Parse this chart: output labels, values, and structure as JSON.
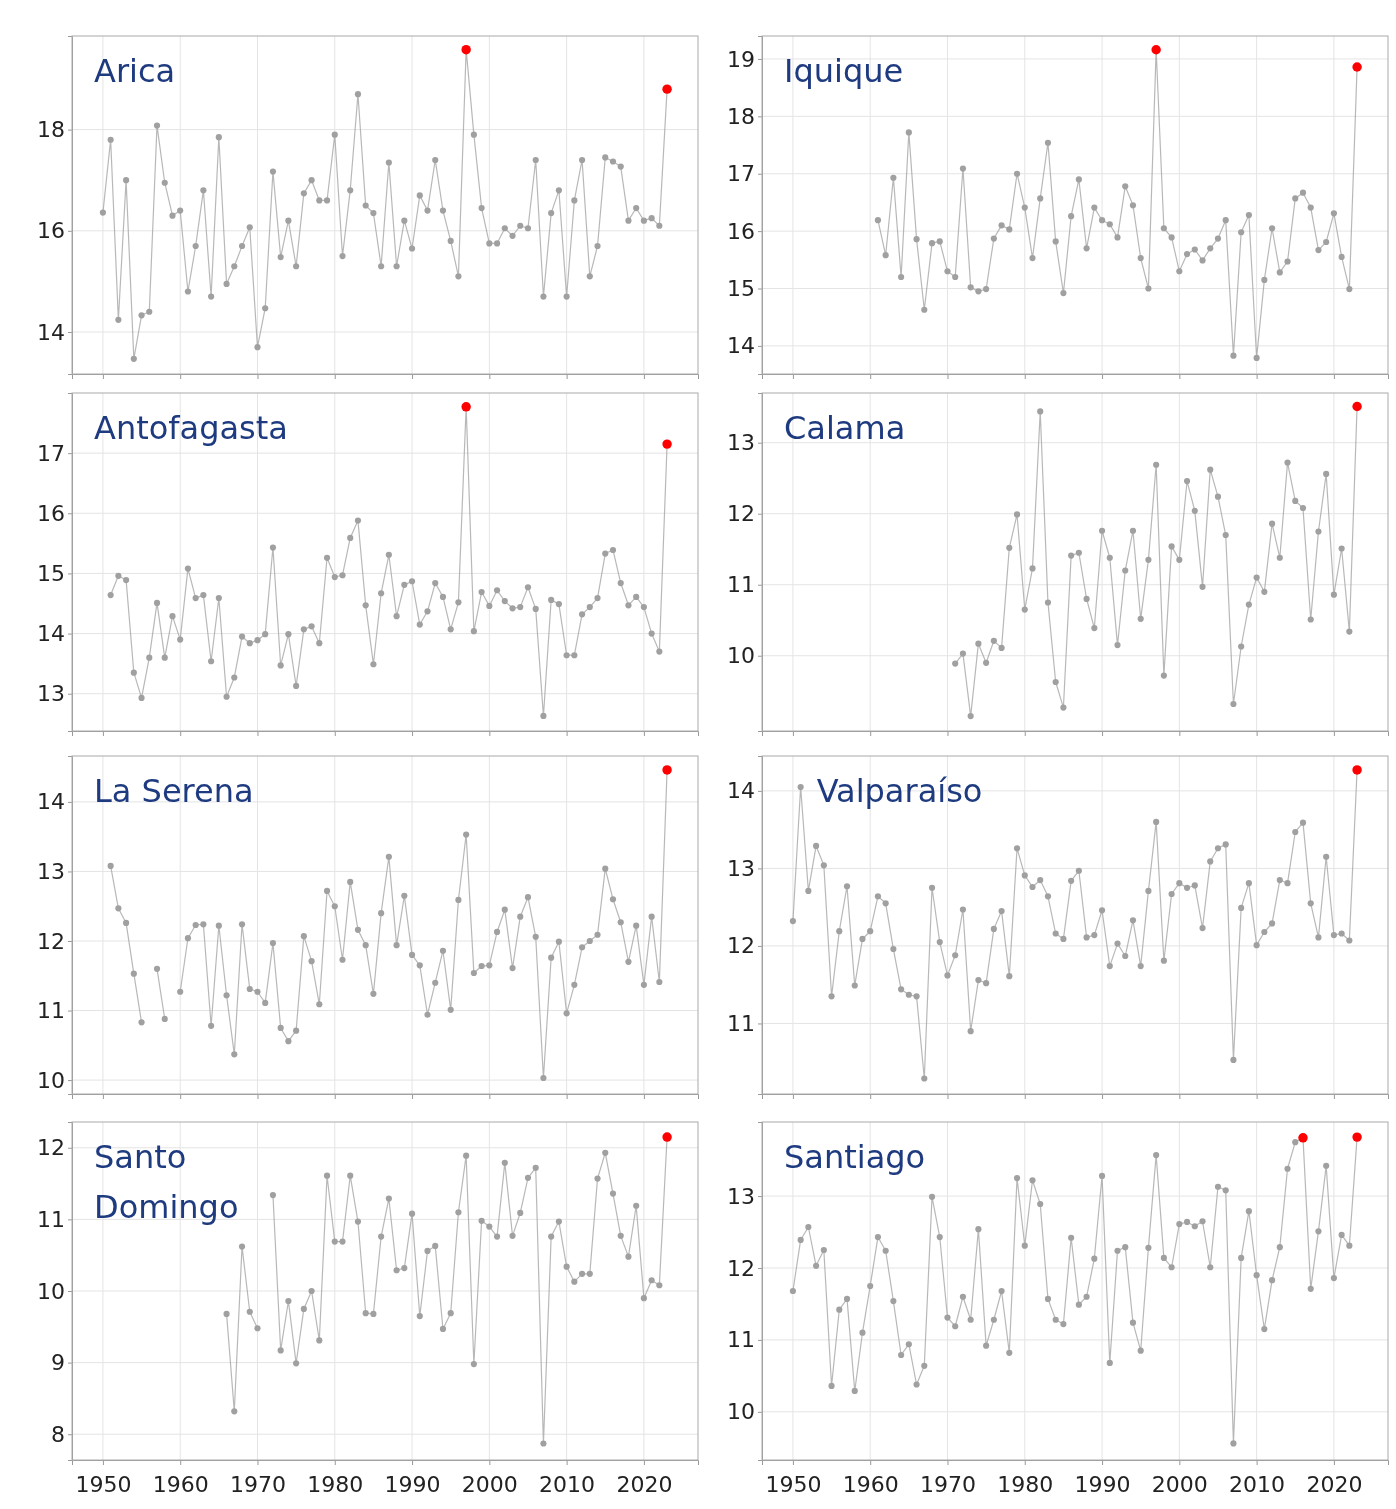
{
  "chart_data": [
    {
      "type": "line",
      "title": "Arica",
      "grid": true,
      "marker": "circle",
      "tick_labels": "y",
      "xlim": [
        1946,
        2027
      ],
      "xticks": [
        1950,
        1960,
        1970,
        1980,
        1990,
        2000,
        2010,
        2020
      ],
      "ylim": [
        13.17,
        19.85
      ],
      "yticks": [
        14,
        16,
        18
      ],
      "x": [
        1950,
        1951,
        1952,
        1953,
        1954,
        1955,
        1956,
        1957,
        1958,
        1959,
        1960,
        1961,
        1962,
        1963,
        1964,
        1965,
        1966,
        1967,
        1968,
        1969,
        1970,
        1971,
        1972,
        1973,
        1974,
        1975,
        1976,
        1977,
        1978,
        1979,
        1980,
        1981,
        1982,
        1983,
        1984,
        1985,
        1986,
        1987,
        1988,
        1989,
        1990,
        1991,
        1992,
        1993,
        1994,
        1995,
        1996,
        1997,
        1998,
        1999,
        2000,
        2001,
        2002,
        2003,
        2004,
        2005,
        2006,
        2007,
        2008,
        2009,
        2010,
        2011,
        2012,
        2013,
        2014,
        2015,
        2016,
        2017,
        2018,
        2019,
        2020,
        2021,
        2022,
        2023
      ],
      "series": [
        {
          "color": "#a0a0a0",
          "values": [
            16.36,
            17.8,
            14.24,
            17.0,
            13.47,
            14.33,
            14.4,
            18.08,
            16.95,
            16.3,
            16.4,
            14.8,
            15.7,
            16.8,
            14.7,
            17.85,
            14.95,
            15.3,
            15.7,
            16.07,
            13.7,
            14.47,
            17.17,
            15.48,
            16.2,
            15.3,
            16.74,
            17.0,
            16.6,
            16.6,
            17.9,
            15.5,
            16.8,
            18.7,
            16.5,
            16.35,
            15.3,
            17.35,
            15.3,
            16.2,
            15.65,
            16.7,
            16.4,
            17.4,
            16.4,
            15.8,
            15.1,
            19.58,
            17.9,
            16.45,
            15.75,
            15.75,
            16.05,
            15.9,
            16.1,
            16.05,
            17.4,
            14.7,
            16.35,
            16.8,
            14.7,
            16.6,
            17.4,
            15.1,
            15.7,
            17.45,
            17.37,
            17.27,
            16.2,
            16.45,
            16.2,
            16.25,
            16.1,
            18.8
          ],
          "colors": [
            "#a0a0a0",
            "#a0a0a0",
            "#a0a0a0",
            "#a0a0a0",
            "#a0a0a0",
            "#a0a0a0",
            "#a0a0a0",
            "#a0a0a0",
            "#a0a0a0",
            "#a0a0a0",
            "#a0a0a0",
            "#a0a0a0",
            "#a0a0a0",
            "#a0a0a0",
            "#a0a0a0",
            "#a0a0a0",
            "#a0a0a0",
            "#a0a0a0",
            "#a0a0a0",
            "#a0a0a0",
            "#a0a0a0",
            "#a0a0a0",
            "#a0a0a0",
            "#a0a0a0",
            "#a0a0a0",
            "#a0a0a0",
            "#a0a0a0",
            "#a0a0a0",
            "#a0a0a0",
            "#a0a0a0",
            "#a0a0a0",
            "#a0a0a0",
            "#a0a0a0",
            "#a0a0a0",
            "#a0a0a0",
            "#a0a0a0",
            "#a0a0a0",
            "#a0a0a0",
            "#a0a0a0",
            "#a0a0a0",
            "#a0a0a0",
            "#a0a0a0",
            "#a0a0a0",
            "#a0a0a0",
            "#a0a0a0",
            "#a0a0a0",
            "#a0a0a0",
            "#ff0000",
            "#a0a0a0",
            "#a0a0a0",
            "#a0a0a0",
            "#a0a0a0",
            "#a0a0a0",
            "#a0a0a0",
            "#a0a0a0",
            "#a0a0a0",
            "#a0a0a0",
            "#a0a0a0",
            "#a0a0a0",
            "#a0a0a0",
            "#a0a0a0",
            "#a0a0a0",
            "#a0a0a0",
            "#a0a0a0",
            "#a0a0a0",
            "#a0a0a0",
            "#a0a0a0",
            "#a0a0a0",
            "#a0a0a0",
            "#a0a0a0",
            "#a0a0a0",
            "#a0a0a0",
            "#a0a0a0",
            "#ff0000"
          ]
        }
      ]
    },
    {
      "type": "line",
      "title": "Iquique",
      "grid": true,
      "marker": "circle",
      "tick_labels": "y",
      "xlim": [
        1946,
        2027
      ],
      "xticks": [
        1950,
        1960,
        1970,
        1980,
        1990,
        2000,
        2010,
        2020
      ],
      "ylim": [
        13.51,
        19.4
      ],
      "yticks": [
        14,
        15,
        16,
        17,
        18,
        19
      ],
      "x": [
        1961,
        1962,
        1963,
        1964,
        1965,
        1966,
        1967,
        1968,
        1969,
        1970,
        1971,
        1972,
        1973,
        1974,
        1975,
        1976,
        1977,
        1978,
        1979,
        1980,
        1981,
        1982,
        1983,
        1984,
        1985,
        1986,
        1987,
        1988,
        1989,
        1990,
        1991,
        1992,
        1993,
        1994,
        1995,
        1996,
        1997,
        1998,
        1999,
        2000,
        2001,
        2002,
        2003,
        2004,
        2005,
        2006,
        2007,
        2008,
        2009,
        2010,
        2011,
        2012,
        2013,
        2014,
        2015,
        2016,
        2017,
        2018,
        2019,
        2020,
        2021,
        2022,
        2023
      ],
      "series": [
        {
          "color": "#a0a0a0",
          "values": [
            16.19,
            15.58,
            16.93,
            15.2,
            17.72,
            15.86,
            14.63,
            15.79,
            15.82,
            15.3,
            15.2,
            17.09,
            15.02,
            14.95,
            14.99,
            15.87,
            16.1,
            16.03,
            17.0,
            16.41,
            15.53,
            16.57,
            17.54,
            15.82,
            14.92,
            16.26,
            16.9,
            15.7,
            16.41,
            16.19,
            16.12,
            15.89,
            16.78,
            16.45,
            15.53,
            15.0,
            19.16,
            16.05,
            15.89,
            15.3,
            15.6,
            15.68,
            15.49,
            15.7,
            15.87,
            16.19,
            13.83,
            15.98,
            16.28,
            13.79,
            15.15,
            16.05,
            15.28,
            15.47,
            16.57,
            16.67,
            16.41,
            15.67,
            15.81,
            16.31,
            15.55,
            14.99,
            18.86
          ],
          "colors": [
            "#a0a0a0",
            "#a0a0a0",
            "#a0a0a0",
            "#a0a0a0",
            "#a0a0a0",
            "#a0a0a0",
            "#a0a0a0",
            "#a0a0a0",
            "#a0a0a0",
            "#a0a0a0",
            "#a0a0a0",
            "#a0a0a0",
            "#a0a0a0",
            "#a0a0a0",
            "#a0a0a0",
            "#a0a0a0",
            "#a0a0a0",
            "#a0a0a0",
            "#a0a0a0",
            "#a0a0a0",
            "#a0a0a0",
            "#a0a0a0",
            "#a0a0a0",
            "#a0a0a0",
            "#a0a0a0",
            "#a0a0a0",
            "#a0a0a0",
            "#a0a0a0",
            "#a0a0a0",
            "#a0a0a0",
            "#a0a0a0",
            "#a0a0a0",
            "#a0a0a0",
            "#a0a0a0",
            "#a0a0a0",
            "#a0a0a0",
            "#ff0000",
            "#a0a0a0",
            "#a0a0a0",
            "#a0a0a0",
            "#a0a0a0",
            "#a0a0a0",
            "#a0a0a0",
            "#a0a0a0",
            "#a0a0a0",
            "#a0a0a0",
            "#a0a0a0",
            "#a0a0a0",
            "#a0a0a0",
            "#a0a0a0",
            "#a0a0a0",
            "#a0a0a0",
            "#a0a0a0",
            "#a0a0a0",
            "#a0a0a0",
            "#a0a0a0",
            "#a0a0a0",
            "#a0a0a0",
            "#a0a0a0",
            "#a0a0a0",
            "#a0a0a0",
            "#a0a0a0",
            "#ff0000"
          ]
        }
      ]
    },
    {
      "type": "line",
      "title": "Antofagasta",
      "grid": true,
      "marker": "circle",
      "tick_labels": "y",
      "xlim": [
        1946,
        2027
      ],
      "xticks": [
        1950,
        1960,
        1970,
        1980,
        1990,
        2000,
        2010,
        2020
      ],
      "ylim": [
        12.38,
        18.0
      ],
      "yticks": [
        13,
        14,
        15,
        16,
        17
      ],
      "x": [
        1951,
        1952,
        1953,
        1954,
        1955,
        1956,
        1957,
        1958,
        1959,
        1960,
        1961,
        1962,
        1963,
        1964,
        1965,
        1966,
        1967,
        1968,
        1969,
        1970,
        1971,
        1972,
        1973,
        1974,
        1975,
        1976,
        1977,
        1978,
        1979,
        1980,
        1981,
        1982,
        1983,
        1984,
        1985,
        1986,
        1987,
        1988,
        1989,
        1990,
        1991,
        1992,
        1993,
        1994,
        1995,
        1996,
        1997,
        1998,
        1999,
        2000,
        2001,
        2002,
        2003,
        2004,
        2005,
        2006,
        2007,
        2008,
        2009,
        2010,
        2011,
        2012,
        2013,
        2014,
        2015,
        2016,
        2017,
        2018,
        2019,
        2020,
        2021,
        2022,
        2023
      ],
      "series": [
        {
          "color": "#a0a0a0",
          "values": [
            14.64,
            14.96,
            14.89,
            13.35,
            12.93,
            13.6,
            14.51,
            13.6,
            14.29,
            13.9,
            15.08,
            14.59,
            14.64,
            13.54,
            14.59,
            12.95,
            13.27,
            13.95,
            13.84,
            13.89,
            13.99,
            15.43,
            13.47,
            13.99,
            13.13,
            14.07,
            14.12,
            13.84,
            15.26,
            14.94,
            14.97,
            15.59,
            15.88,
            14.47,
            13.49,
            14.67,
            15.31,
            14.29,
            14.81,
            14.87,
            14.15,
            14.37,
            14.84,
            14.61,
            14.07,
            14.52,
            17.77,
            14.04,
            14.69,
            14.46,
            14.72,
            14.54,
            14.42,
            14.44,
            14.77,
            14.41,
            12.63,
            14.56,
            14.49,
            13.64,
            13.64,
            14.32,
            14.44,
            14.59,
            15.33,
            15.39,
            14.84,
            14.47,
            14.61,
            14.44,
            14.0,
            13.7,
            17.15
          ],
          "colors": [
            "#a0a0a0",
            "#a0a0a0",
            "#a0a0a0",
            "#a0a0a0",
            "#a0a0a0",
            "#a0a0a0",
            "#a0a0a0",
            "#a0a0a0",
            "#a0a0a0",
            "#a0a0a0",
            "#a0a0a0",
            "#a0a0a0",
            "#a0a0a0",
            "#a0a0a0",
            "#a0a0a0",
            "#a0a0a0",
            "#a0a0a0",
            "#a0a0a0",
            "#a0a0a0",
            "#a0a0a0",
            "#a0a0a0",
            "#a0a0a0",
            "#a0a0a0",
            "#a0a0a0",
            "#a0a0a0",
            "#a0a0a0",
            "#a0a0a0",
            "#a0a0a0",
            "#a0a0a0",
            "#a0a0a0",
            "#a0a0a0",
            "#a0a0a0",
            "#a0a0a0",
            "#a0a0a0",
            "#a0a0a0",
            "#a0a0a0",
            "#a0a0a0",
            "#a0a0a0",
            "#a0a0a0",
            "#a0a0a0",
            "#a0a0a0",
            "#a0a0a0",
            "#a0a0a0",
            "#a0a0a0",
            "#a0a0a0",
            "#a0a0a0",
            "#ff0000",
            "#a0a0a0",
            "#a0a0a0",
            "#a0a0a0",
            "#a0a0a0",
            "#a0a0a0",
            "#a0a0a0",
            "#a0a0a0",
            "#a0a0a0",
            "#a0a0a0",
            "#a0a0a0",
            "#a0a0a0",
            "#a0a0a0",
            "#a0a0a0",
            "#a0a0a0",
            "#a0a0a0",
            "#a0a0a0",
            "#a0a0a0",
            "#a0a0a0",
            "#a0a0a0",
            "#a0a0a0",
            "#a0a0a0",
            "#a0a0a0",
            "#a0a0a0",
            "#a0a0a0",
            "#a0a0a0",
            "#ff0000"
          ]
        }
      ]
    },
    {
      "type": "line",
      "title": "Calama",
      "grid": true,
      "marker": "circle",
      "tick_labels": "y",
      "xlim": [
        1946,
        2027
      ],
      "xticks": [
        1950,
        1960,
        1970,
        1980,
        1990,
        2000,
        2010,
        2020
      ],
      "ylim": [
        8.94,
        13.7
      ],
      "yticks": [
        10,
        11,
        12,
        13
      ],
      "x": [
        1971,
        1972,
        1973,
        1974,
        1975,
        1976,
        1977,
        1978,
        1979,
        1980,
        1981,
        1982,
        1983,
        1984,
        1985,
        1986,
        1987,
        1988,
        1989,
        1990,
        1991,
        1992,
        1993,
        1994,
        1995,
        1996,
        1997,
        1998,
        1999,
        2000,
        2001,
        2002,
        2003,
        2004,
        2005,
        2006,
        2007,
        2008,
        2009,
        2010,
        2011,
        2012,
        2013,
        2014,
        2015,
        2016,
        2017,
        2018,
        2019,
        2020,
        2021,
        2022,
        2023
      ],
      "series": [
        {
          "color": "#a0a0a0",
          "values": [
            9.89,
            10.03,
            9.15,
            10.17,
            9.9,
            10.21,
            10.11,
            11.52,
            11.99,
            10.65,
            11.23,
            13.44,
            10.75,
            9.63,
            9.27,
            11.41,
            11.45,
            10.8,
            10.39,
            11.76,
            11.38,
            10.15,
            11.2,
            11.76,
            10.52,
            11.35,
            12.69,
            9.72,
            11.54,
            11.35,
            12.46,
            12.04,
            10.97,
            12.62,
            12.24,
            11.7,
            9.32,
            10.13,
            10.72,
            11.1,
            10.9,
            11.86,
            11.38,
            12.72,
            12.18,
            12.08,
            10.51,
            11.75,
            12.56,
            10.86,
            11.51,
            10.34,
            13.51
          ],
          "colors": [
            "#a0a0a0",
            "#a0a0a0",
            "#a0a0a0",
            "#a0a0a0",
            "#a0a0a0",
            "#a0a0a0",
            "#a0a0a0",
            "#a0a0a0",
            "#a0a0a0",
            "#a0a0a0",
            "#a0a0a0",
            "#a0a0a0",
            "#a0a0a0",
            "#a0a0a0",
            "#a0a0a0",
            "#a0a0a0",
            "#a0a0a0",
            "#a0a0a0",
            "#a0a0a0",
            "#a0a0a0",
            "#a0a0a0",
            "#a0a0a0",
            "#a0a0a0",
            "#a0a0a0",
            "#a0a0a0",
            "#a0a0a0",
            "#a0a0a0",
            "#a0a0a0",
            "#a0a0a0",
            "#a0a0a0",
            "#a0a0a0",
            "#a0a0a0",
            "#a0a0a0",
            "#a0a0a0",
            "#a0a0a0",
            "#a0a0a0",
            "#a0a0a0",
            "#a0a0a0",
            "#a0a0a0",
            "#a0a0a0",
            "#a0a0a0",
            "#a0a0a0",
            "#a0a0a0",
            "#a0a0a0",
            "#a0a0a0",
            "#a0a0a0",
            "#a0a0a0",
            "#a0a0a0",
            "#a0a0a0",
            "#a0a0a0",
            "#a0a0a0",
            "#a0a0a0",
            "#ff0000"
          ]
        }
      ]
    },
    {
      "type": "line",
      "title": "La Serena",
      "grid": true,
      "marker": "circle",
      "tick_labels": "y",
      "xlim": [
        1946,
        2027
      ],
      "xticks": [
        1950,
        1960,
        1970,
        1980,
        1990,
        2000,
        2010,
        2020
      ],
      "ylim": [
        9.8,
        14.66
      ],
      "yticks": [
        10,
        11,
        12,
        13,
        14
      ],
      "x": [
        1951,
        1952,
        1953,
        1954,
        1955,
        1956,
        1957,
        1958,
        1959,
        1960,
        1961,
        1962,
        1963,
        1964,
        1965,
        1966,
        1967,
        1968,
        1969,
        1970,
        1971,
        1972,
        1973,
        1974,
        1975,
        1976,
        1977,
        1978,
        1979,
        1980,
        1981,
        1982,
        1983,
        1984,
        1985,
        1986,
        1987,
        1988,
        1989,
        1990,
        1991,
        1992,
        1993,
        1994,
        1995,
        1996,
        1997,
        1998,
        1999,
        2000,
        2001,
        2002,
        2003,
        2004,
        2005,
        2006,
        2007,
        2008,
        2009,
        2010,
        2011,
        2012,
        2013,
        2014,
        2015,
        2016,
        2017,
        2018,
        2019,
        2020,
        2021,
        2022,
        2023
      ],
      "series": [
        {
          "color": "#a0a0a0",
          "values": [
            13.08,
            12.47,
            12.26,
            11.53,
            10.83,
            null,
            11.6,
            10.88,
            null,
            11.27,
            12.04,
            12.23,
            12.24,
            10.78,
            12.22,
            11.22,
            10.37,
            12.24,
            11.31,
            11.27,
            11.11,
            11.97,
            10.75,
            10.56,
            10.71,
            12.07,
            11.71,
            11.09,
            12.72,
            12.5,
            11.73,
            12.85,
            12.16,
            11.94,
            11.24,
            12.4,
            13.21,
            11.94,
            12.65,
            11.8,
            11.65,
            10.94,
            11.4,
            11.86,
            11.01,
            12.59,
            13.53,
            11.54,
            11.64,
            11.65,
            12.13,
            12.45,
            11.61,
            12.35,
            12.63,
            12.06,
            10.03,
            11.76,
            11.99,
            10.96,
            11.37,
            11.91,
            12.0,
            12.09,
            13.04,
            12.6,
            12.27,
            11.7,
            12.22,
            11.37,
            12.35,
            11.41,
            14.46
          ],
          "colors": [
            "#a0a0a0",
            "#a0a0a0",
            "#a0a0a0",
            "#a0a0a0",
            "#a0a0a0",
            "#a0a0a0",
            "#a0a0a0",
            "#a0a0a0",
            "#a0a0a0",
            "#a0a0a0",
            "#a0a0a0",
            "#a0a0a0",
            "#a0a0a0",
            "#a0a0a0",
            "#a0a0a0",
            "#a0a0a0",
            "#a0a0a0",
            "#a0a0a0",
            "#a0a0a0",
            "#a0a0a0",
            "#a0a0a0",
            "#a0a0a0",
            "#a0a0a0",
            "#a0a0a0",
            "#a0a0a0",
            "#a0a0a0",
            "#a0a0a0",
            "#a0a0a0",
            "#a0a0a0",
            "#a0a0a0",
            "#a0a0a0",
            "#a0a0a0",
            "#a0a0a0",
            "#a0a0a0",
            "#a0a0a0",
            "#a0a0a0",
            "#a0a0a0",
            "#a0a0a0",
            "#a0a0a0",
            "#a0a0a0",
            "#a0a0a0",
            "#a0a0a0",
            "#a0a0a0",
            "#a0a0a0",
            "#a0a0a0",
            "#a0a0a0",
            "#a0a0a0",
            "#a0a0a0",
            "#a0a0a0",
            "#a0a0a0",
            "#a0a0a0",
            "#a0a0a0",
            "#a0a0a0",
            "#a0a0a0",
            "#a0a0a0",
            "#a0a0a0",
            "#a0a0a0",
            "#a0a0a0",
            "#a0a0a0",
            "#a0a0a0",
            "#a0a0a0",
            "#a0a0a0",
            "#a0a0a0",
            "#a0a0a0",
            "#a0a0a0",
            "#a0a0a0",
            "#a0a0a0",
            "#a0a0a0",
            "#a0a0a0",
            "#a0a0a0",
            "#a0a0a0",
            "#a0a0a0",
            "#ff0000"
          ]
        }
      ]
    },
    {
      "type": "line",
      "title": "Valparaíso",
      "grid": true,
      "marker": "circle",
      "tick_labels": "y",
      "xlim": [
        1946,
        2027
      ],
      "xticks": [
        1950,
        1960,
        1970,
        1980,
        1990,
        2000,
        2010,
        2020
      ],
      "ylim": [
        10.09,
        14.45
      ],
      "yticks": [
        11,
        12,
        13,
        14
      ],
      "x": [
        1950,
        1951,
        1952,
        1953,
        1954,
        1955,
        1956,
        1957,
        1958,
        1959,
        1960,
        1961,
        1962,
        1963,
        1964,
        1965,
        1966,
        1967,
        1968,
        1969,
        1970,
        1971,
        1972,
        1973,
        1974,
        1975,
        1976,
        1977,
        1978,
        1979,
        1980,
        1981,
        1982,
        1983,
        1984,
        1985,
        1986,
        1987,
        1988,
        1989,
        1990,
        1991,
        1992,
        1993,
        1994,
        1995,
        1996,
        1997,
        1998,
        1999,
        2000,
        2001,
        2002,
        2003,
        2004,
        2005,
        2006,
        2007,
        2008,
        2009,
        2010,
        2011,
        2012,
        2013,
        2014,
        2015,
        2016,
        2017,
        2018,
        2019,
        2020,
        2021,
        2022,
        2023
      ],
      "series": [
        {
          "color": "#a0a0a0",
          "values": [
            12.32,
            14.05,
            12.71,
            13.29,
            13.04,
            11.35,
            12.19,
            12.77,
            11.49,
            12.09,
            12.19,
            12.64,
            12.55,
            11.96,
            11.44,
            11.37,
            11.35,
            10.29,
            12.75,
            12.05,
            11.62,
            11.88,
            12.47,
            10.9,
            11.56,
            11.52,
            12.22,
            12.45,
            11.61,
            13.26,
            12.91,
            12.76,
            12.85,
            12.64,
            12.16,
            12.09,
            12.84,
            12.97,
            12.11,
            12.14,
            12.46,
            11.74,
            12.03,
            11.87,
            12.33,
            11.74,
            12.71,
            13.6,
            11.81,
            12.67,
            12.81,
            12.75,
            12.78,
            12.23,
            13.09,
            13.26,
            13.31,
            10.53,
            12.49,
            12.81,
            12.01,
            12.18,
            12.29,
            12.85,
            12.81,
            13.47,
            13.59,
            12.55,
            12.11,
            13.15,
            12.14,
            12.16,
            12.07,
            14.27
          ],
          "colors": [
            "#a0a0a0",
            "#a0a0a0",
            "#a0a0a0",
            "#a0a0a0",
            "#a0a0a0",
            "#a0a0a0",
            "#a0a0a0",
            "#a0a0a0",
            "#a0a0a0",
            "#a0a0a0",
            "#a0a0a0",
            "#a0a0a0",
            "#a0a0a0",
            "#a0a0a0",
            "#a0a0a0",
            "#a0a0a0",
            "#a0a0a0",
            "#a0a0a0",
            "#a0a0a0",
            "#a0a0a0",
            "#a0a0a0",
            "#a0a0a0",
            "#a0a0a0",
            "#a0a0a0",
            "#a0a0a0",
            "#a0a0a0",
            "#a0a0a0",
            "#a0a0a0",
            "#a0a0a0",
            "#a0a0a0",
            "#a0a0a0",
            "#a0a0a0",
            "#a0a0a0",
            "#a0a0a0",
            "#a0a0a0",
            "#a0a0a0",
            "#a0a0a0",
            "#a0a0a0",
            "#a0a0a0",
            "#a0a0a0",
            "#a0a0a0",
            "#a0a0a0",
            "#a0a0a0",
            "#a0a0a0",
            "#a0a0a0",
            "#a0a0a0",
            "#a0a0a0",
            "#a0a0a0",
            "#a0a0a0",
            "#a0a0a0",
            "#a0a0a0",
            "#a0a0a0",
            "#a0a0a0",
            "#a0a0a0",
            "#a0a0a0",
            "#a0a0a0",
            "#a0a0a0",
            "#a0a0a0",
            "#a0a0a0",
            "#a0a0a0",
            "#a0a0a0",
            "#a0a0a0",
            "#a0a0a0",
            "#a0a0a0",
            "#a0a0a0",
            "#a0a0a0",
            "#a0a0a0",
            "#a0a0a0",
            "#a0a0a0",
            "#a0a0a0",
            "#a0a0a0",
            "#a0a0a0",
            "#a0a0a0",
            "#ff0000"
          ]
        }
      ]
    },
    {
      "type": "line",
      "title": "Santo\nDomingo",
      "grid": true,
      "marker": "circle",
      "xlim": [
        1946,
        2027
      ],
      "xticks": [
        1950,
        1960,
        1970,
        1980,
        1990,
        2000,
        2010,
        2020
      ],
      "ylim": [
        7.64,
        12.36
      ],
      "yticks": [
        8,
        9,
        10,
        11,
        12
      ],
      "x": [
        1966,
        1967,
        1968,
        1969,
        1970,
        1971,
        1972,
        1973,
        1974,
        1975,
        1976,
        1977,
        1978,
        1979,
        1980,
        1981,
        1982,
        1983,
        1984,
        1985,
        1986,
        1987,
        1988,
        1989,
        1990,
        1991,
        1992,
        1993,
        1994,
        1995,
        1996,
        1997,
        1998,
        1999,
        2000,
        2001,
        2002,
        2003,
        2004,
        2005,
        2006,
        2007,
        2008,
        2009,
        2010,
        2011,
        2012,
        2013,
        2014,
        2015,
        2016,
        2017,
        2018,
        2019,
        2020,
        2021,
        2022,
        2023
      ],
      "series": [
        {
          "color": "#a0a0a0",
          "values": [
            9.68,
            8.32,
            10.62,
            9.71,
            9.48,
            null,
            11.34,
            9.17,
            9.86,
            8.99,
            9.75,
            10.0,
            9.31,
            11.61,
            10.69,
            10.69,
            11.61,
            10.97,
            9.69,
            9.68,
            10.76,
            11.29,
            10.29,
            10.32,
            11.08,
            9.65,
            10.56,
            10.63,
            9.47,
            9.69,
            11.1,
            11.89,
            8.98,
            10.98,
            10.9,
            10.76,
            11.79,
            10.77,
            11.09,
            11.58,
            11.72,
            7.87,
            10.76,
            10.97,
            10.34,
            10.13,
            10.24,
            10.24,
            11.57,
            11.93,
            11.36,
            10.77,
            10.48,
            11.19,
            9.9,
            10.15,
            10.08,
            12.15
          ],
          "colors": [
            "#a0a0a0",
            "#a0a0a0",
            "#a0a0a0",
            "#a0a0a0",
            "#a0a0a0",
            "#a0a0a0",
            "#a0a0a0",
            "#a0a0a0",
            "#a0a0a0",
            "#a0a0a0",
            "#a0a0a0",
            "#a0a0a0",
            "#a0a0a0",
            "#a0a0a0",
            "#a0a0a0",
            "#a0a0a0",
            "#a0a0a0",
            "#a0a0a0",
            "#a0a0a0",
            "#a0a0a0",
            "#a0a0a0",
            "#a0a0a0",
            "#a0a0a0",
            "#a0a0a0",
            "#a0a0a0",
            "#a0a0a0",
            "#a0a0a0",
            "#a0a0a0",
            "#a0a0a0",
            "#a0a0a0",
            "#a0a0a0",
            "#a0a0a0",
            "#a0a0a0",
            "#a0a0a0",
            "#a0a0a0",
            "#a0a0a0",
            "#a0a0a0",
            "#a0a0a0",
            "#a0a0a0",
            "#a0a0a0",
            "#a0a0a0",
            "#a0a0a0",
            "#a0a0a0",
            "#a0a0a0",
            "#a0a0a0",
            "#a0a0a0",
            "#a0a0a0",
            "#a0a0a0",
            "#a0a0a0",
            "#a0a0a0",
            "#a0a0a0",
            "#a0a0a0",
            "#a0a0a0",
            "#a0a0a0",
            "#a0a0a0",
            "#a0a0a0",
            "#a0a0a0",
            "#ff0000"
          ]
        }
      ]
    },
    {
      "type": "line",
      "title": "Santiago",
      "grid": true,
      "marker": "circle",
      "xlim": [
        1946,
        2027
      ],
      "xticks": [
        1950,
        1960,
        1970,
        1980,
        1990,
        2000,
        2010,
        2020
      ],
      "ylim": [
        9.33,
        14.03
      ],
      "yticks": [
        10,
        11,
        12,
        13
      ],
      "x": [
        1950,
        1951,
        1952,
        1953,
        1954,
        1955,
        1956,
        1957,
        1958,
        1959,
        1960,
        1961,
        1962,
        1963,
        1964,
        1965,
        1966,
        1967,
        1968,
        1969,
        1970,
        1971,
        1972,
        1973,
        1974,
        1975,
        1976,
        1977,
        1978,
        1979,
        1980,
        1981,
        1982,
        1983,
        1984,
        1985,
        1986,
        1987,
        1988,
        1989,
        1990,
        1991,
        1992,
        1993,
        1994,
        1995,
        1996,
        1997,
        1998,
        1999,
        2000,
        2001,
        2002,
        2003,
        2004,
        2005,
        2006,
        2007,
        2008,
        2009,
        2010,
        2011,
        2012,
        2013,
        2014,
        2015,
        2016,
        2017,
        2018,
        2019,
        2020,
        2021,
        2022,
        2023
      ],
      "series": [
        {
          "color": "#a0a0a0",
          "values": [
            11.68,
            12.39,
            12.57,
            12.03,
            12.25,
            10.36,
            11.42,
            11.57,
            10.29,
            11.1,
            11.75,
            12.43,
            12.24,
            11.54,
            10.79,
            10.94,
            10.38,
            10.64,
            12.99,
            12.43,
            11.31,
            11.19,
            11.6,
            11.28,
            12.54,
            10.92,
            11.28,
            11.68,
            10.82,
            13.25,
            12.31,
            13.22,
            12.89,
            11.57,
            11.28,
            11.22,
            12.42,
            11.49,
            11.6,
            12.13,
            13.28,
            10.68,
            12.24,
            12.29,
            11.24,
            10.85,
            12.28,
            13.57,
            12.14,
            12.01,
            12.61,
            12.64,
            12.58,
            12.65,
            12.01,
            13.13,
            13.08,
            9.56,
            12.14,
            12.79,
            11.9,
            11.15,
            11.83,
            12.29,
            13.38,
            13.75,
            13.81,
            11.71,
            12.51,
            13.42,
            11.86,
            12.46,
            12.31,
            13.82
          ],
          "colors": [
            "#a0a0a0",
            "#a0a0a0",
            "#a0a0a0",
            "#a0a0a0",
            "#a0a0a0",
            "#a0a0a0",
            "#a0a0a0",
            "#a0a0a0",
            "#a0a0a0",
            "#a0a0a0",
            "#a0a0a0",
            "#a0a0a0",
            "#a0a0a0",
            "#a0a0a0",
            "#a0a0a0",
            "#a0a0a0",
            "#a0a0a0",
            "#a0a0a0",
            "#a0a0a0",
            "#a0a0a0",
            "#a0a0a0",
            "#a0a0a0",
            "#a0a0a0",
            "#a0a0a0",
            "#a0a0a0",
            "#a0a0a0",
            "#a0a0a0",
            "#a0a0a0",
            "#a0a0a0",
            "#a0a0a0",
            "#a0a0a0",
            "#a0a0a0",
            "#a0a0a0",
            "#a0a0a0",
            "#a0a0a0",
            "#a0a0a0",
            "#a0a0a0",
            "#a0a0a0",
            "#a0a0a0",
            "#a0a0a0",
            "#a0a0a0",
            "#a0a0a0",
            "#a0a0a0",
            "#a0a0a0",
            "#a0a0a0",
            "#a0a0a0",
            "#a0a0a0",
            "#a0a0a0",
            "#a0a0a0",
            "#a0a0a0",
            "#a0a0a0",
            "#a0a0a0",
            "#a0a0a0",
            "#a0a0a0",
            "#a0a0a0",
            "#a0a0a0",
            "#a0a0a0",
            "#a0a0a0",
            "#a0a0a0",
            "#a0a0a0",
            "#a0a0a0",
            "#a0a0a0",
            "#a0a0a0",
            "#a0a0a0",
            "#a0a0a0",
            "#a0a0a0",
            "#ff0000",
            "#a0a0a0",
            "#a0a0a0",
            "#a0a0a0",
            "#a0a0a0",
            "#a0a0a0",
            "#a0a0a0",
            "#ff0000"
          ]
        }
      ]
    }
  ]
}
